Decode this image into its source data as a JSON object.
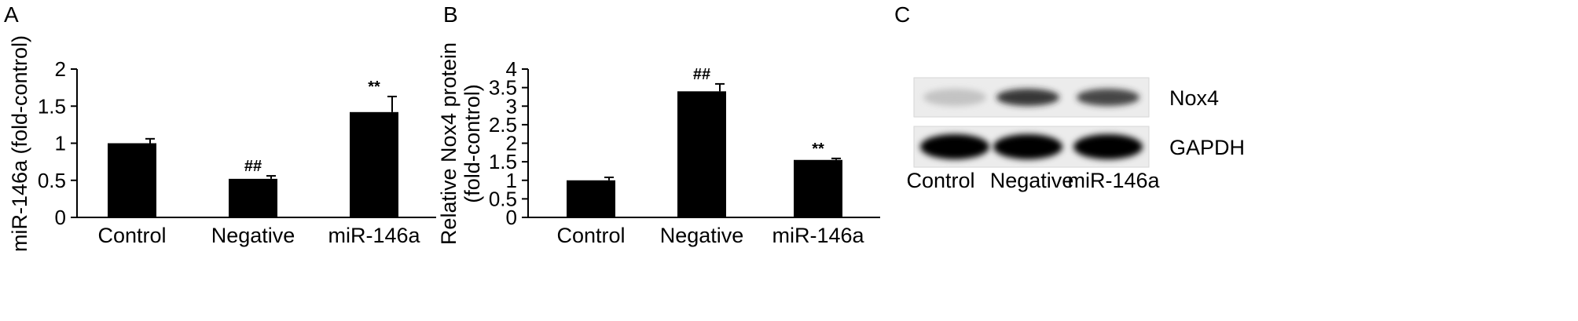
{
  "chart_data": [
    {
      "panel": "A",
      "type": "bar",
      "ylabel": "miR-146a (fold-control)",
      "categories": [
        "Control",
        "Negative",
        "miR-146a"
      ],
      "values": [
        1.0,
        0.52,
        1.42
      ],
      "errors": [
        0.06,
        0.04,
        0.21
      ],
      "annotations": [
        "",
        "##",
        "**"
      ],
      "ylim": [
        0,
        2
      ],
      "yticks": [
        "0",
        "0.5",
        "1",
        "1.5",
        "2"
      ],
      "ytick_values": [
        0,
        0.5,
        1,
        1.5,
        2
      ]
    },
    {
      "panel": "B",
      "type": "bar",
      "ylabel_line1": "Relative Nox4 protein",
      "ylabel_line2": "(fold-control)",
      "categories": [
        "Control",
        "Negative",
        "miR-146a"
      ],
      "values": [
        1.0,
        3.4,
        1.55
      ],
      "errors": [
        0.08,
        0.2,
        0.04
      ],
      "annotations": [
        "",
        "##",
        "**"
      ],
      "ylim": [
        0,
        4
      ],
      "yticks": [
        "0",
        "0.5",
        "1",
        "1.5",
        "2",
        "2.5",
        "3",
        "3.5",
        "4"
      ],
      "ytick_values": [
        0,
        0.5,
        1,
        1.5,
        2,
        2.5,
        3,
        3.5,
        4
      ]
    }
  ],
  "blot": {
    "panel": "C",
    "rows": [
      {
        "label": "Nox4",
        "intensities": [
          0.3,
          0.85,
          0.8
        ]
      },
      {
        "label": "GAPDH",
        "intensities": [
          1.0,
          1.0,
          1.0
        ]
      }
    ],
    "lanes": [
      "Control",
      "Negative",
      "miR-146a"
    ]
  }
}
